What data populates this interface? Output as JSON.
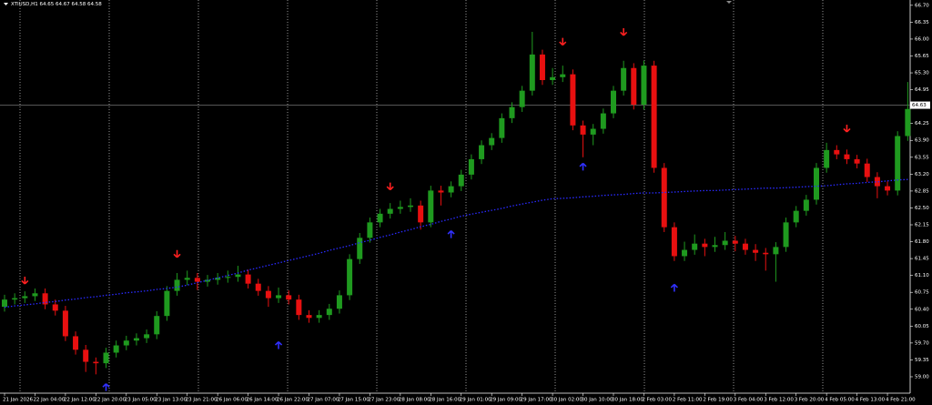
{
  "chart_data": {
    "type": "candlestick",
    "title": "XTIUSD,H1 64.65 64.67 64.58 64.58",
    "categories": [
      "21 Jan 2026",
      null,
      null,
      "22 Jan 04:00",
      null,
      null,
      "22 Jan 12:00",
      null,
      null,
      "22 Jan 20:00",
      null,
      null,
      "23 Jan 05:00",
      null,
      null,
      "23 Jan 13:00",
      null,
      null,
      "23 Jan 21:00",
      null,
      null,
      "26 Jan 06:00",
      null,
      null,
      "26 Jan 14:00",
      null,
      null,
      "26 Jan 22:00",
      null,
      null,
      "27 Jan 07:00",
      null,
      null,
      "27 Jan 15:00",
      null,
      null,
      "27 Jan 23:00",
      null,
      null,
      "28 Jan 08:00",
      null,
      null,
      "28 Jan 16:00",
      null,
      null,
      "29 Jan 01:00",
      null,
      null,
      "29 Jan 09:00",
      null,
      null,
      "29 Jan 17:00",
      null,
      null,
      "30 Jan 02:00",
      null,
      null,
      "30 Jan 10:00",
      null,
      null,
      "30 Jan 18:00",
      null,
      null,
      "2 Feb 03:00",
      null,
      null,
      "2 Feb 11:00",
      null,
      null,
      "2 Feb 19:00",
      null,
      null,
      "3 Feb 04:00",
      null,
      null,
      "3 Feb 12:00",
      null,
      null,
      "3 Feb 20:00",
      null,
      null,
      "4 Feb 05:00",
      null,
      null,
      "4 Feb 13:00",
      null,
      null,
      "4 Feb 21:00",
      null,
      null
    ],
    "open": [
      60.45,
      60.6,
      60.63,
      60.67,
      60.73,
      60.5,
      60.37,
      59.84,
      59.56,
      59.31,
      59.28,
      59.5,
      59.65,
      59.75,
      59.8,
      59.88,
      60.26,
      60.78,
      61.01,
      61.05,
      60.97,
      61.01,
      61.05,
      61.07,
      61.12,
      60.93,
      60.78,
      60.63,
      60.69,
      60.6,
      60.28,
      60.22,
      60.28,
      60.41,
      60.69,
      61.44,
      61.88,
      62.2,
      62.38,
      62.48,
      62.52,
      62.55,
      62.2,
      62.86,
      62.82,
      62.95,
      63.19,
      63.51,
      63.8,
      63.95,
      64.36,
      64.59,
      64.93,
      65.68,
      65.15,
      65.21,
      65.27,
      64.21,
      64.02,
      64.14,
      64.46,
      64.93,
      65.4,
      64.64,
      65.45,
      63.33,
      62.1,
      61.5,
      61.63,
      61.76,
      61.69,
      61.73,
      61.82,
      61.76,
      61.63,
      61.57,
      61.54,
      61.69,
      62.2,
      62.44,
      62.67,
      63.33,
      63.7,
      63.61,
      63.51,
      63.42,
      63.14,
      62.95,
      62.86,
      63.99
    ],
    "high": [
      60.7,
      60.73,
      60.77,
      60.83,
      60.83,
      60.6,
      60.47,
      59.94,
      59.66,
      59.4,
      59.6,
      59.75,
      59.85,
      59.9,
      59.98,
      60.36,
      60.88,
      61.15,
      61.2,
      61.15,
      61.11,
      61.15,
      61.2,
      61.3,
      61.22,
      61.03,
      60.88,
      60.85,
      60.79,
      60.7,
      60.38,
      60.38,
      60.51,
      60.79,
      61.54,
      61.98,
      62.3,
      62.48,
      62.6,
      62.65,
      62.7,
      62.65,
      62.96,
      62.96,
      63.05,
      63.29,
      63.61,
      63.9,
      64.05,
      64.46,
      64.69,
      65.03,
      66.15,
      65.78,
      65.4,
      65.45,
      65.37,
      64.31,
      64.24,
      64.56,
      65.03,
      65.55,
      65.5,
      65.55,
      65.55,
      63.43,
      62.2,
      61.8,
      61.95,
      61.86,
      61.9,
      62.0,
      61.92,
      61.86,
      61.75,
      61.67,
      61.79,
      62.3,
      62.54,
      62.77,
      63.43,
      63.85,
      63.8,
      63.71,
      63.6,
      63.52,
      63.24,
      63.05,
      64.09,
      65.11
    ],
    "low": [
      60.35,
      60.5,
      60.53,
      60.57,
      60.4,
      60.27,
      59.74,
      59.46,
      59.1,
      59.05,
      59.18,
      59.4,
      59.55,
      59.65,
      59.7,
      59.78,
      60.16,
      60.68,
      60.9,
      60.8,
      60.87,
      60.91,
      60.95,
      60.97,
      60.83,
      60.68,
      60.45,
      60.53,
      60.5,
      60.18,
      60.12,
      60.12,
      60.18,
      60.31,
      60.59,
      61.34,
      61.78,
      62.1,
      62.28,
      62.38,
      62.42,
      62.05,
      62.1,
      62.55,
      62.72,
      62.85,
      63.09,
      63.41,
      63.7,
      63.85,
      64.26,
      64.49,
      64.83,
      65.05,
      65.05,
      65.11,
      64.11,
      63.55,
      63.8,
      64.04,
      64.36,
      64.83,
      64.54,
      64.54,
      63.23,
      62.0,
      61.4,
      61.4,
      61.53,
      61.5,
      61.59,
      61.63,
      61.6,
      61.53,
      61.4,
      61.2,
      60.97,
      61.59,
      62.1,
      62.34,
      62.57,
      63.23,
      63.51,
      63.41,
      63.32,
      63.04,
      62.7,
      62.76,
      62.76,
      63.89
    ],
    "close": [
      60.6,
      60.63,
      60.67,
      60.73,
      60.5,
      60.37,
      59.84,
      59.56,
      59.31,
      59.28,
      59.5,
      59.65,
      59.75,
      59.8,
      59.88,
      60.26,
      60.78,
      61.01,
      61.05,
      60.97,
      61.01,
      61.05,
      61.07,
      61.12,
      60.93,
      60.78,
      60.63,
      60.69,
      60.6,
      60.28,
      60.22,
      60.28,
      60.41,
      60.69,
      61.44,
      61.88,
      62.2,
      62.38,
      62.48,
      62.52,
      62.55,
      62.2,
      62.86,
      62.82,
      62.95,
      63.19,
      63.51,
      63.8,
      63.95,
      64.36,
      64.59,
      64.93,
      65.68,
      65.15,
      65.21,
      65.27,
      64.21,
      64.02,
      64.14,
      64.46,
      64.93,
      65.4,
      64.64,
      65.45,
      63.33,
      62.1,
      61.5,
      61.63,
      61.76,
      61.69,
      61.73,
      61.82,
      61.76,
      61.63,
      61.57,
      61.54,
      61.69,
      62.2,
      62.44,
      62.67,
      63.33,
      63.7,
      63.61,
      63.51,
      63.42,
      63.14,
      62.95,
      62.86,
      63.99,
      64.55
    ],
    "ma": [
      60.44,
      60.47,
      60.49,
      60.51,
      60.54,
      60.56,
      60.59,
      60.61,
      60.64,
      60.66,
      60.69,
      60.71,
      60.74,
      60.76,
      60.78,
      60.81,
      60.83,
      60.86,
      60.9,
      60.95,
      61.0,
      61.05,
      61.1,
      61.15,
      61.21,
      61.26,
      61.31,
      61.36,
      61.41,
      61.46,
      61.51,
      61.56,
      61.62,
      61.67,
      61.72,
      61.78,
      61.83,
      61.89,
      61.94,
      62.0,
      62.05,
      62.11,
      62.16,
      62.22,
      62.27,
      62.33,
      62.37,
      62.41,
      62.45,
      62.49,
      62.54,
      62.58,
      62.62,
      62.66,
      62.69,
      62.7,
      62.71,
      62.73,
      62.74,
      62.76,
      62.77,
      62.78,
      62.8,
      62.81,
      62.81,
      62.82,
      62.83,
      62.84,
      62.85,
      62.86,
      62.86,
      62.87,
      62.88,
      62.89,
      62.9,
      62.91,
      62.91,
      62.92,
      62.93,
      62.94,
      62.95,
      62.96,
      62.98,
      63.0,
      63.01,
      63.03,
      63.04,
      63.06,
      63.08,
      63.09
    ],
    "ma_color": "#2a2aff",
    "signals": [
      {
        "index": 2,
        "value": 61.0,
        "direction": "down"
      },
      {
        "index": 17,
        "value": 61.55,
        "direction": "down"
      },
      {
        "index": 38,
        "value": 62.95,
        "direction": "down"
      },
      {
        "index": 55,
        "value": 65.95,
        "direction": "down"
      },
      {
        "index": 61,
        "value": 66.15,
        "direction": "down"
      },
      {
        "index": 83,
        "value": 64.15,
        "direction": "down"
      },
      {
        "index": 10,
        "value": 58.78,
        "direction": "up"
      },
      {
        "index": 27,
        "value": 59.65,
        "direction": "up"
      },
      {
        "index": 44,
        "value": 61.95,
        "direction": "up"
      },
      {
        "index": 57,
        "value": 63.35,
        "direction": "up"
      },
      {
        "index": 66,
        "value": 60.84,
        "direction": "up"
      }
    ],
    "up_color": "#1f9a1f",
    "down_color": "#e81010",
    "current_price": 64.63,
    "ylim": [
      58.66,
      66.81
    ],
    "yticks": [
      {
        "value": 66.7,
        "label": "66.70"
      },
      66.35,
      {
        "value": 66,
        "label": "66.00"
      },
      65.65,
      {
        "value": 65.3,
        "label": "65.30"
      },
      64.95,
      64.25,
      {
        "value": 63.9,
        "label": "63.90"
      },
      63.55,
      {
        "value": 63.2,
        "label": "63.20"
      },
      62.85,
      {
        "value": 62.5,
        "label": "62.50"
      },
      62.15,
      {
        "value": 61.8,
        "label": "61.80"
      },
      61.45,
      {
        "value": 61.1,
        "label": "61.10"
      },
      60.75,
      {
        "value": 60.4,
        "label": "60.40"
      },
      60.05,
      {
        "value": 59.7,
        "label": "59.70"
      },
      59.35,
      {
        "value": 59,
        "label": "59.00"
      }
    ]
  }
}
